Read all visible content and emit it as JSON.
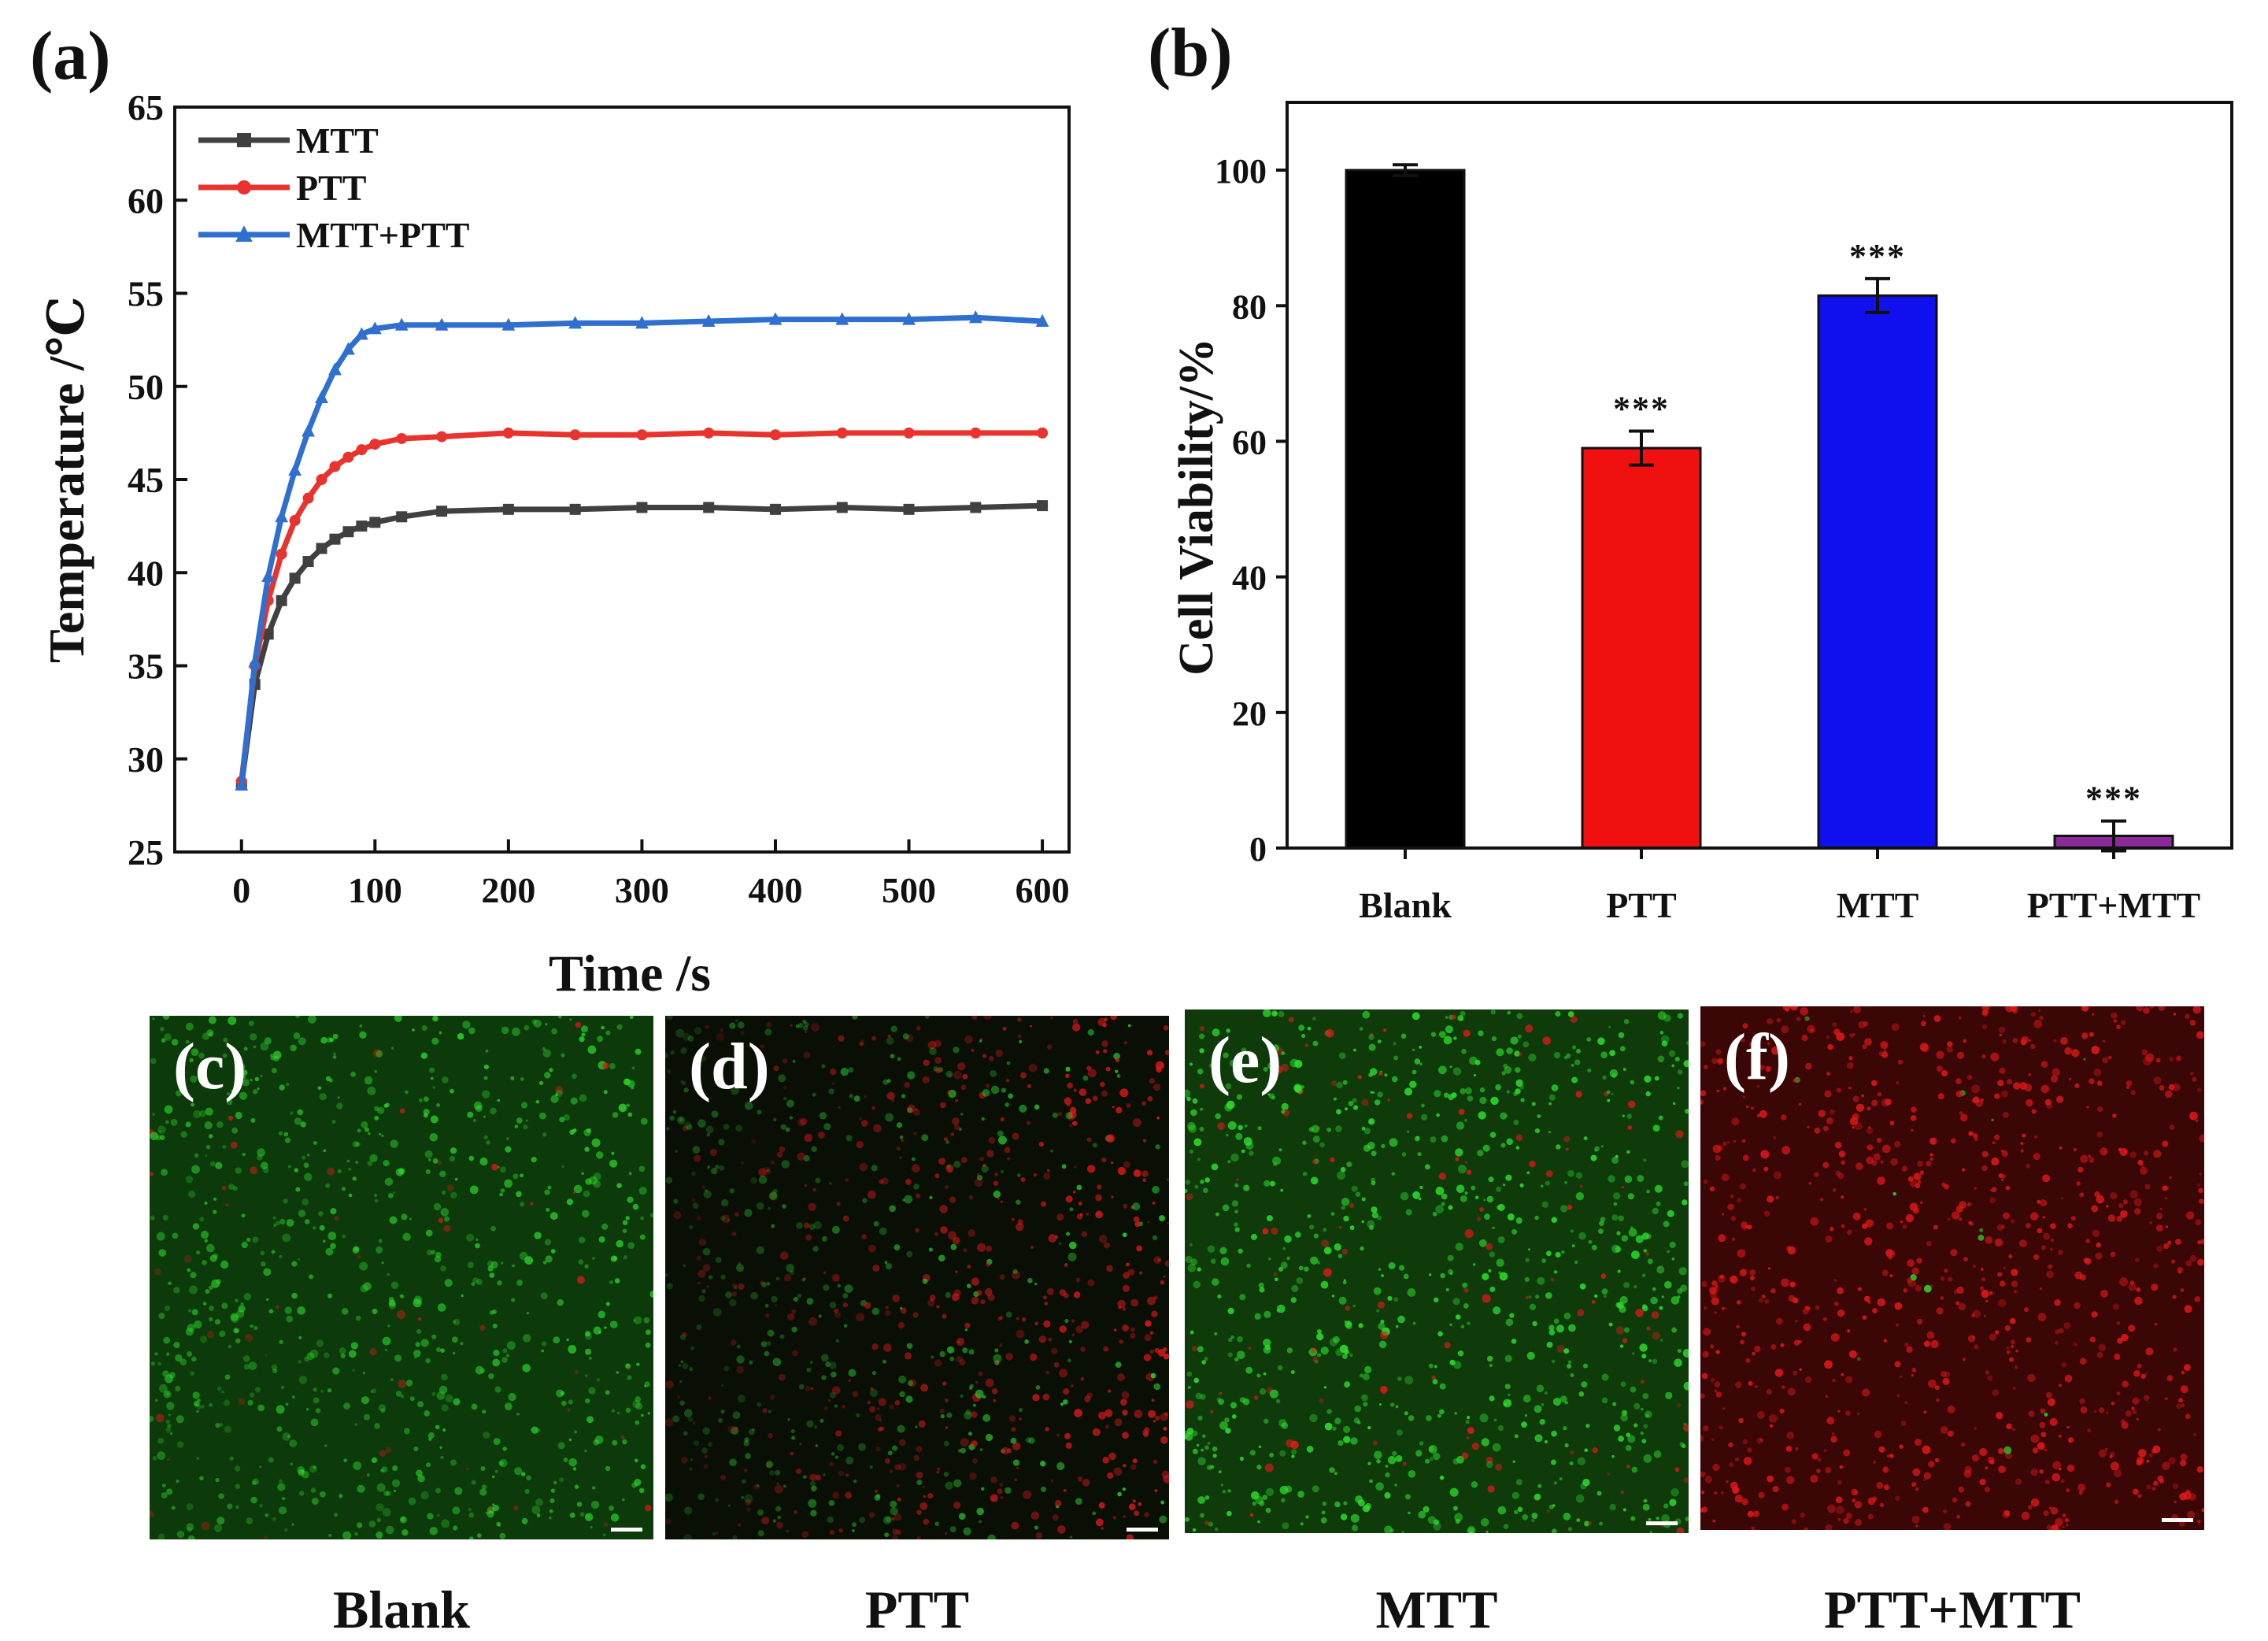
{
  "chart_data": [
    {
      "panel": "(a)",
      "type": "line",
      "title": "",
      "xlabel": "Time /s",
      "ylabel": "Temperature /℃",
      "xlim": [
        -50,
        620
      ],
      "ylim": [
        25,
        65
      ],
      "xticks": [
        0,
        100,
        200,
        300,
        400,
        500,
        600
      ],
      "yticks": [
        25,
        30,
        35,
        40,
        45,
        50,
        55,
        60,
        65
      ],
      "legend": "top-left",
      "x": [
        0,
        10,
        20,
        30,
        40,
        50,
        60,
        70,
        80,
        90,
        100,
        120,
        150,
        200,
        250,
        300,
        350,
        400,
        450,
        500,
        550,
        600
      ],
      "series": [
        {
          "name": "MTT",
          "color": "#404040",
          "marker": "square",
          "values": [
            28.6,
            34.0,
            36.7,
            38.5,
            39.7,
            40.6,
            41.3,
            41.8,
            42.2,
            42.5,
            42.7,
            43.0,
            43.3,
            43.4,
            43.4,
            43.5,
            43.5,
            43.4,
            43.5,
            43.4,
            43.5,
            43.6
          ]
        },
        {
          "name": "PTT",
          "color": "#e8332e",
          "marker": "circle",
          "values": [
            28.8,
            35.0,
            38.5,
            41.0,
            42.8,
            44.0,
            45.0,
            45.7,
            46.2,
            46.6,
            46.9,
            47.2,
            47.3,
            47.5,
            47.4,
            47.4,
            47.5,
            47.4,
            47.5,
            47.5,
            47.5,
            47.5
          ]
        },
        {
          "name": "MTT+PTT",
          "color": "#2f6fcf",
          "marker": "triangle",
          "values": [
            28.6,
            35.2,
            39.8,
            43.0,
            45.5,
            47.6,
            49.4,
            50.9,
            52.0,
            52.8,
            53.1,
            53.3,
            53.3,
            53.3,
            53.4,
            53.4,
            53.5,
            53.6,
            53.6,
            53.6,
            53.7,
            53.5
          ]
        }
      ]
    },
    {
      "panel": "(b)",
      "type": "bar",
      "title": "",
      "xlabel": "",
      "ylabel": "Cell Viability/%",
      "ylim": [
        0,
        110
      ],
      "yticks": [
        0,
        20,
        40,
        60,
        80,
        100
      ],
      "categories": [
        "Blank",
        "PTT",
        "MTT",
        "PTT+MTT"
      ],
      "values": [
        100,
        59,
        81.5,
        1.8
      ],
      "errors": [
        0.8,
        2.5,
        2.5,
        2.2
      ],
      "colors": [
        "#000000",
        "#f01010",
        "#1010ee",
        "#8b2a9a"
      ],
      "significance": [
        "",
        "***",
        "***",
        "***"
      ]
    }
  ],
  "micrographs": [
    {
      "letter": "(c)",
      "label": "Blank"
    },
    {
      "letter": "(d)",
      "label": "PTT"
    },
    {
      "letter": "(e)",
      "label": "MTT"
    },
    {
      "letter": "(f)",
      "label": "PTT+MTT"
    }
  ],
  "colors": {
    "live_stain": "#2edc2e",
    "dead_stain": "#e01818",
    "axis": "#111111"
  }
}
